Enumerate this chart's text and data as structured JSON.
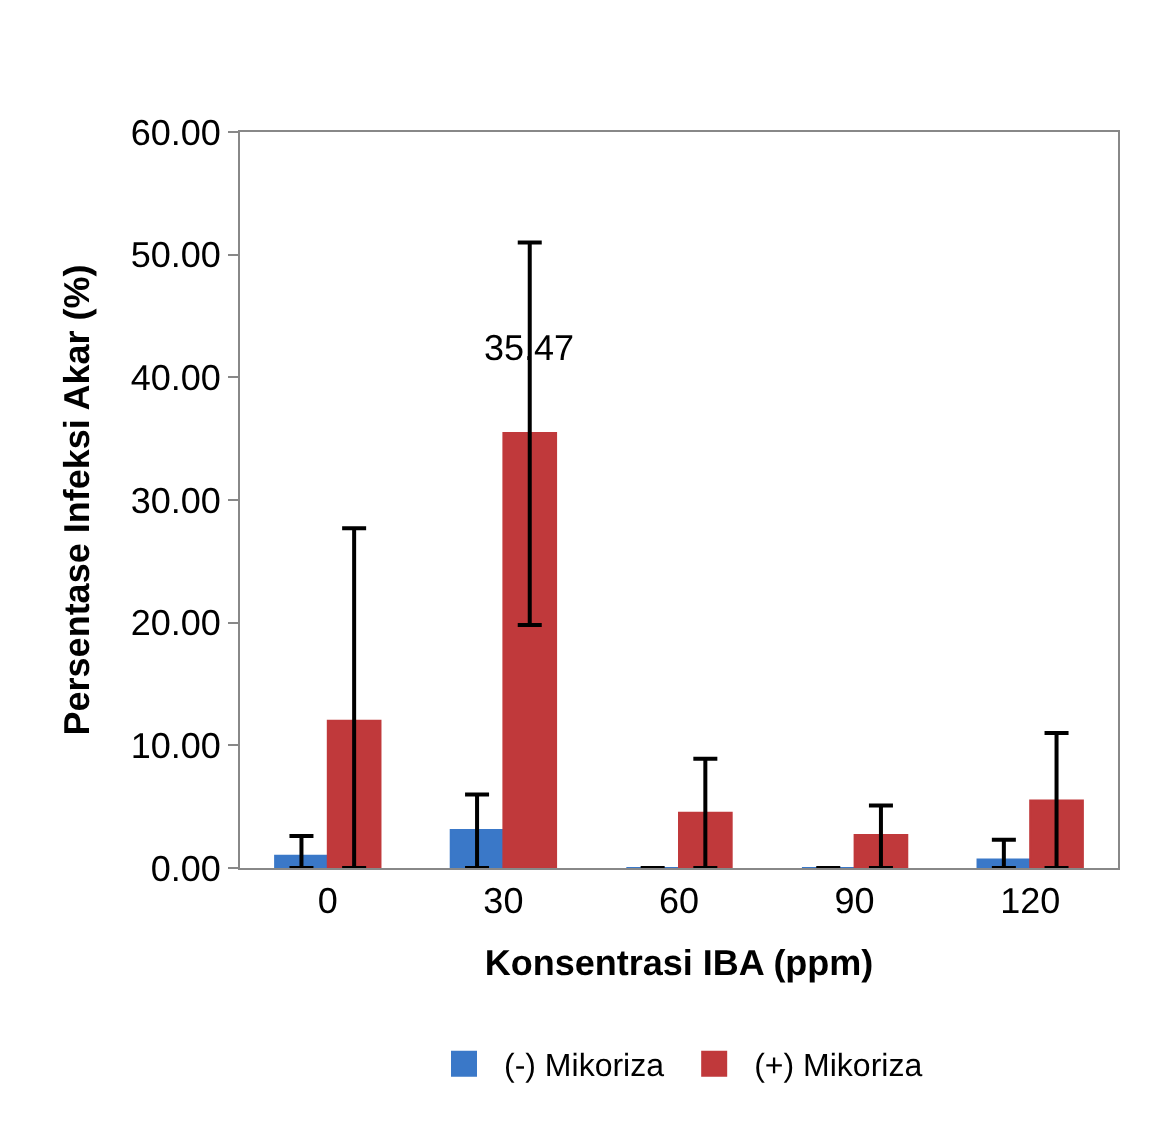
{
  "chart_data": {
    "type": "bar",
    "xlabel": "Konsentrasi IBA (ppm)",
    "ylabel": "Persentase Infeksi Akar (%)",
    "categories": [
      "0",
      "30",
      "60",
      "90",
      "120"
    ],
    "series": [
      {
        "name": "(-) Mikoriza",
        "color": "#3a78c8",
        "values": [
          1.0,
          3.1,
          0,
          0,
          0.7
        ],
        "errors": [
          [
            0,
            2.6
          ],
          [
            0,
            6.0
          ],
          null,
          null,
          [
            0,
            2.3
          ]
        ]
      },
      {
        "name": "(+) Mikoriza",
        "color": "#c0393b",
        "values": [
          12.0,
          35.47,
          4.5,
          2.7,
          5.5
        ],
        "errors": [
          [
            0,
            27.7
          ],
          [
            19.8,
            51.0
          ],
          [
            0,
            8.9
          ],
          [
            0,
            5.1
          ],
          [
            0,
            11.0
          ]
        ],
        "value_labels": [
          null,
          "35.47",
          null,
          null,
          null
        ]
      }
    ],
    "ylim": [
      0,
      60
    ],
    "yticks": [
      {
        "value": 0,
        "label": "0.00"
      },
      {
        "value": 10,
        "label": "10.00"
      },
      {
        "value": 20,
        "label": "20.00"
      },
      {
        "value": 30,
        "label": "30.00"
      },
      {
        "value": 40,
        "label": "40.00"
      },
      {
        "value": 50,
        "label": "50.00"
      },
      {
        "value": 60,
        "label": "60.00"
      }
    ],
    "legend": "bottom"
  }
}
